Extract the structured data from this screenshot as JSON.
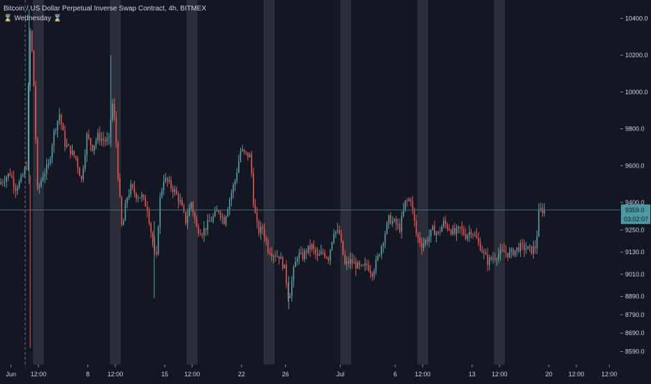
{
  "legend": {
    "title": "Bitcoin / US Dollar Perpetual Inverse Swap Contract, 4h, BITMEX",
    "session_glyph": "⌛",
    "session_label": "Wednesday",
    "session_glyph_end": "⌛"
  },
  "colors": {
    "background": "#131722",
    "up": "#26a69a",
    "up_soft": "#5aa2a8",
    "down": "#ef5350",
    "session_band": "#2a2e39",
    "axis_text": "#d1d4dc",
    "price_line": "#4f6f75",
    "price_tag": "#4c9aa1",
    "crosshair": "#9598a1"
  },
  "chart_data": {
    "type": "candlestick",
    "symbol": "Bitcoin / US Dollar Perpetual Inverse Swap Contract",
    "interval": "4h",
    "exchange": "BITMEX",
    "ylim": [
      8520,
      10500
    ],
    "y_ticks": [
      {
        "label": "10400.0",
        "value": 10400
      },
      {
        "label": "10200.0",
        "value": 10200
      },
      {
        "label": "10000.0",
        "value": 10000
      },
      {
        "label": "9800.0",
        "value": 9800
      },
      {
        "label": "9600.0",
        "value": 9600
      },
      {
        "label": "9400.0",
        "value": 9400
      },
      {
        "label": "9250.0",
        "value": 9250
      },
      {
        "label": "9130.0",
        "value": 9130
      },
      {
        "label": "9010.0",
        "value": 9010
      },
      {
        "label": "8890.0",
        "value": 8890
      },
      {
        "label": "8790.0",
        "value": 8790
      },
      {
        "label": "8690.0",
        "value": 8690
      },
      {
        "label": "8590.0",
        "value": 8590
      }
    ],
    "x_ticks": [
      {
        "label": "Jun",
        "day": 1
      },
      {
        "label": "12:00",
        "day": 3.5
      },
      {
        "label": "8",
        "day": 8
      },
      {
        "label": "12:00",
        "day": 10.5
      },
      {
        "label": "15",
        "day": 15
      },
      {
        "label": "12:00",
        "day": 17.5
      },
      {
        "label": "22",
        "day": 22
      },
      {
        "label": "26",
        "day": 26
      },
      {
        "label": "Jul",
        "day": 31
      },
      {
        "label": "6",
        "day": 36
      },
      {
        "label": "12:00",
        "day": 38.5
      },
      {
        "label": "13",
        "day": 43
      },
      {
        "label": "12:00",
        "day": 45.5
      },
      {
        "label": "20",
        "day": 50
      },
      {
        "label": "12:00",
        "day": 52.5
      },
      {
        "label": "12:00",
        "day": 55.5
      }
    ],
    "session_bands": [
      3,
      10,
      17,
      24,
      31,
      38,
      45
    ],
    "last_price": {
      "value": 9359,
      "label": "9359.0"
    },
    "countdown": "03:02:07",
    "crosshair_day": 2.3,
    "anchors": [
      [
        0,
        9500
      ],
      [
        1,
        9560
      ],
      [
        1.5,
        9480
      ],
      [
        2,
        9520
      ],
      [
        2.5,
        9600
      ],
      [
        2.8,
        10350
      ],
      [
        3.1,
        10150
      ],
      [
        3.5,
        9460
      ],
      [
        4,
        9550
      ],
      [
        4.5,
        9600
      ],
      [
        5,
        9780
      ],
      [
        5.5,
        9880
      ],
      [
        6,
        9720
      ],
      [
        6.5,
        9680
      ],
      [
        7,
        9640
      ],
      [
        7.5,
        9520
      ],
      [
        8,
        9760
      ],
      [
        8.5,
        9700
      ],
      [
        9,
        9760
      ],
      [
        9.5,
        9740
      ],
      [
        10,
        9730
      ],
      [
        10.3,
        9950
      ],
      [
        10.6,
        9800
      ],
      [
        10.8,
        9580
      ],
      [
        11.2,
        9240
      ],
      [
        11.6,
        9420
      ],
      [
        12,
        9480
      ],
      [
        12.5,
        9440
      ],
      [
        13,
        9430
      ],
      [
        13.5,
        9370
      ],
      [
        14,
        9180
      ],
      [
        14.3,
        9060
      ],
      [
        14.6,
        9400
      ],
      [
        15,
        9530
      ],
      [
        15.5,
        9500
      ],
      [
        16,
        9460
      ],
      [
        16.5,
        9400
      ],
      [
        17,
        9300
      ],
      [
        17.5,
        9400
      ],
      [
        18,
        9260
      ],
      [
        18.5,
        9240
      ],
      [
        19,
        9280
      ],
      [
        19.5,
        9320
      ],
      [
        20,
        9360
      ],
      [
        20.5,
        9300
      ],
      [
        21,
        9420
      ],
      [
        21.5,
        9520
      ],
      [
        22,
        9680
      ],
      [
        22.5,
        9660
      ],
      [
        22.9,
        9650
      ],
      [
        23.2,
        9380
      ],
      [
        23.6,
        9240
      ],
      [
        24,
        9260
      ],
      [
        24.5,
        9150
      ],
      [
        25,
        9120
      ],
      [
        25.5,
        9110
      ],
      [
        26,
        9040
      ],
      [
        26.4,
        8870
      ],
      [
        26.8,
        9020
      ],
      [
        27.2,
        9120
      ],
      [
        27.6,
        9100
      ],
      [
        28,
        9140
      ],
      [
        28.5,
        9160
      ],
      [
        29,
        9100
      ],
      [
        29.5,
        9130
      ],
      [
        30,
        9100
      ],
      [
        30.5,
        9250
      ],
      [
        31,
        9230
      ],
      [
        31.5,
        9060
      ],
      [
        32,
        9080
      ],
      [
        32.5,
        9060
      ],
      [
        33,
        9040
      ],
      [
        33.5,
        9060
      ],
      [
        34,
        9020
      ],
      [
        34.5,
        9100
      ],
      [
        35,
        9200
      ],
      [
        35.5,
        9310
      ],
      [
        36,
        9290
      ],
      [
        36.5,
        9260
      ],
      [
        37,
        9400
      ],
      [
        37.5,
        9420
      ],
      [
        38,
        9230
      ],
      [
        38.5,
        9170
      ],
      [
        39,
        9200
      ],
      [
        39.5,
        9250
      ],
      [
        40,
        9230
      ],
      [
        40.5,
        9290
      ],
      [
        41,
        9260
      ],
      [
        41.5,
        9230
      ],
      [
        42,
        9260
      ],
      [
        42.5,
        9220
      ],
      [
        43,
        9250
      ],
      [
        43.5,
        9200
      ],
      [
        44,
        9140
      ],
      [
        44.5,
        9080
      ],
      [
        45,
        9100
      ],
      [
        45.5,
        9120
      ],
      [
        46,
        9130
      ],
      [
        46.5,
        9120
      ],
      [
        47,
        9140
      ],
      [
        47.5,
        9160
      ],
      [
        48,
        9150
      ],
      [
        48.5,
        9140
      ],
      [
        48.9,
        9160
      ],
      [
        49.2,
        9360
      ],
      [
        49.5,
        9359
      ]
    ]
  }
}
